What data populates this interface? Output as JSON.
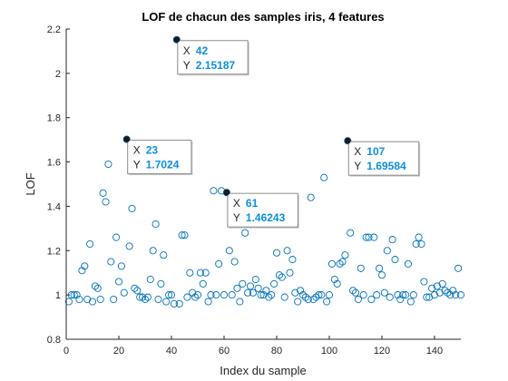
{
  "chart_data": {
    "type": "scatter",
    "title": "LOF de chacun des samples iris, 4 features",
    "xlabel": "Index du sample",
    "ylabel": "LOF",
    "xlim": [
      0,
      150
    ],
    "ylim": [
      0.8,
      2.2
    ],
    "xticks": [
      0,
      20,
      40,
      60,
      80,
      100,
      120,
      140
    ],
    "yticks": [
      0.8,
      1,
      1.2,
      1.4,
      1.6,
      1.8,
      2,
      2.2
    ],
    "ytick_labels": [
      "0.8",
      "1",
      "1.2",
      "1.4",
      "1.6",
      "1.8",
      "2",
      "2.2"
    ],
    "grid": false,
    "marker_color": "#0072bd",
    "x": [
      1,
      2,
      3,
      4,
      5,
      6,
      7,
      8,
      9,
      10,
      11,
      12,
      13,
      14,
      15,
      16,
      17,
      18,
      19,
      20,
      21,
      22,
      23,
      24,
      25,
      26,
      27,
      28,
      29,
      30,
      31,
      32,
      33,
      34,
      35,
      36,
      37,
      38,
      39,
      40,
      41,
      42,
      43,
      44,
      45,
      46,
      47,
      48,
      49,
      50,
      51,
      52,
      53,
      54,
      55,
      56,
      57,
      58,
      59,
      60,
      61,
      62,
      63,
      64,
      65,
      66,
      67,
      68,
      69,
      70,
      71,
      72,
      73,
      74,
      75,
      76,
      77,
      78,
      79,
      80,
      81,
      82,
      83,
      84,
      85,
      86,
      87,
      88,
      89,
      90,
      91,
      92,
      93,
      94,
      95,
      96,
      97,
      98,
      99,
      100,
      101,
      102,
      103,
      104,
      105,
      106,
      107,
      108,
      109,
      110,
      111,
      112,
      113,
      114,
      115,
      116,
      117,
      118,
      119,
      120,
      121,
      122,
      123,
      124,
      125,
      126,
      127,
      128,
      129,
      130,
      131,
      132,
      133,
      134,
      135,
      136,
      137,
      138,
      139,
      140,
      141,
      142,
      143,
      144,
      145,
      146,
      147,
      148,
      149,
      150
    ],
    "values": [
      0.97,
      1.0,
      1.0,
      1.0,
      0.98,
      1.11,
      1.13,
      0.98,
      1.23,
      0.97,
      1.04,
      1.03,
      0.98,
      1.46,
      1.42,
      1.59,
      1.15,
      0.98,
      1.26,
      1.06,
      1.13,
      1.01,
      1.7024,
      1.22,
      1.39,
      1.03,
      1.02,
      0.99,
      0.99,
      0.98,
      0.99,
      1.07,
      1.2,
      1.32,
      0.98,
      1.05,
      1.18,
      0.97,
      1.0,
      1.0,
      0.96,
      2.15187,
      0.96,
      1.27,
      1.27,
      0.99,
      1.1,
      1.01,
      0.99,
      1.0,
      1.1,
      1.05,
      1.1,
      0.97,
      1.0,
      1.47,
      1.0,
      1.14,
      1.47,
      1.0,
      1.46243,
      1.2,
      1.0,
      1.15,
      1.03,
      0.97,
      1.05,
      1.28,
      1.01,
      1.04,
      1.01,
      1.07,
      1.03,
      1.0,
      1.0,
      1.02,
      0.99,
      1.0,
      1.05,
      1.19,
      1.09,
      1.08,
      0.99,
      1.2,
      1.1,
      1.16,
      1.01,
      0.97,
      1.02,
      1.0,
      0.99,
      0.98,
      1.44,
      0.98,
      0.99,
      1.0,
      1.0,
      1.53,
      0.97,
      1.0,
      1.14,
      1.07,
      1.05,
      1.14,
      1.15,
      1.18,
      1.69584,
      1.28,
      1.02,
      1.01,
      0.98,
      1.12,
      1.0,
      1.26,
      1.26,
      0.98,
      1.26,
      1.0,
      1.12,
      1.09,
      1.01,
      1.2,
      0.99,
      1.25,
      1.16,
      1.0,
      0.98,
      1.0,
      1.0,
      1.14,
      0.97,
      1.0,
      1.23,
      1.26,
      1.23,
      1.06,
      0.99,
      0.99,
      1.03,
      1.0,
      1.04,
      1.01,
      1.05,
      1.02,
      1.01,
      1.0,
      1.02,
      1.0,
      1.12,
      1.0
    ],
    "annotations": [
      {
        "x_label": "X",
        "x": "42",
        "y_label": "Y",
        "y": "2.15187",
        "index": 42
      },
      {
        "x_label": "X",
        "x": "23",
        "y_label": "Y",
        "y": "1.7024",
        "index": 23
      },
      {
        "x_label": "X",
        "x": "107",
        "y_label": "Y",
        "y": "1.69584",
        "index": 107
      },
      {
        "x_label": "X",
        "x": "61",
        "y_label": "Y",
        "y": "1.46243",
        "index": 61
      }
    ]
  }
}
